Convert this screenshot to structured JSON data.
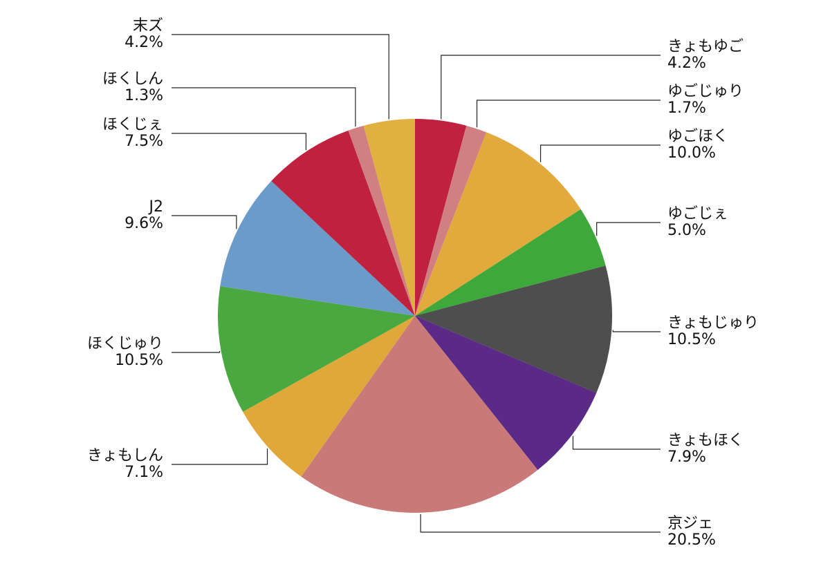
{
  "chart_data": {
    "type": "pie",
    "categories": [
      "きょもゆご",
      "ゆごじゅり",
      "ゆごほく",
      "ゆごじぇ",
      "きょもじゅり",
      "きょもほく",
      "京ジェ",
      "きょもしん",
      "ほくじゅり",
      "J2",
      "ほくじぇ",
      "ほくしん",
      "末ズ"
    ],
    "values": [
      4.2,
      1.7,
      10.0,
      5.0,
      10.5,
      7.9,
      20.5,
      7.1,
      10.5,
      9.6,
      7.5,
      1.3,
      4.2
    ],
    "value_labels": [
      "4.2%",
      "1.7%",
      "10.0%",
      "5.0%",
      "10.5%",
      "7.9%",
      "20.5%",
      "7.1%",
      "10.5%",
      "9.6%",
      "7.5%",
      "1.3%",
      "4.2%"
    ],
    "colors": [
      "#c0213f",
      "#d08080",
      "#e2aa3c",
      "#3fa83a",
      "#4e4e4e",
      "#5a2a86",
      "#c97a78",
      "#e0a83a",
      "#4aa840",
      "#6b9bc8",
      "#c0213f",
      "#d08080",
      "#e0b040"
    ]
  }
}
